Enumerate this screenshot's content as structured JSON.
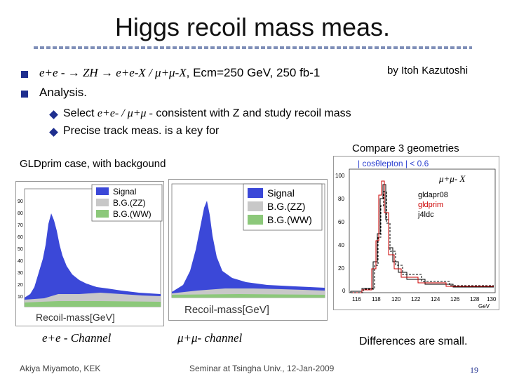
{
  "slide": {
    "title": "Higgs recoil mass meas.",
    "author": "by Itoh Kazutoshi",
    "bullet1": {
      "process": "e+e - → ZH → e+e-X / μ+μ-X",
      "params": ", Ecm=250 GeV, 250 fb-1"
    },
    "bullet2": "Analysis.",
    "sub1_a": "Select",
    "sub1_b": "e+e- / μ+μ -",
    "sub1_c": "consistent with Z and study recoil mass",
    "sub2": "Precise track meas. is a key for",
    "left_caption": "GLDprim case, with backgound",
    "right_caption": "Compare 3 geometries",
    "channel_ee": "e+e - Channel",
    "channel_mm": "μ+μ- channel",
    "conclusion": "Differences are small.",
    "footer_left": "Akiya Miyamoto, KEK",
    "footer_center": "Seminar at Tsingha Univ., 12-Jan-2009",
    "page_number": "19"
  },
  "plot_ee": {
    "legend": [
      "Signal",
      "B.G.(ZZ)",
      "B.G.(WW)"
    ],
    "xlabel": "Recoil-mass[GeV]",
    "y_ticks": [
      "90",
      "80",
      "70",
      "60",
      "50",
      "40",
      "30",
      "20",
      "10"
    ]
  },
  "plot_mm": {
    "legend": [
      "Signal",
      "B.G.(ZZ)",
      "B.G.(WW)"
    ],
    "xlabel": "Recoil-mass[GeV]"
  },
  "plot_geom": {
    "cut_label": "| cosθlepton | < 0.6",
    "channel": "μ+μ- X",
    "legend": [
      "gldapr08",
      "gldprim",
      "j4ldc"
    ],
    "legend_colors": [
      "#000000",
      "#cc0000",
      "#000000"
    ],
    "y_ticks": [
      "100",
      "80",
      "60",
      "40",
      "20",
      "0"
    ],
    "x_ticks": [
      "116",
      "118",
      "120",
      "122",
      "124",
      "126",
      "128",
      "130"
    ],
    "xunit": "GeV"
  },
  "colors": {
    "signal": "#3b48d8",
    "zz": "#c8c8c8",
    "ww": "#8cc87a",
    "accent": "#1f2f8f"
  }
}
